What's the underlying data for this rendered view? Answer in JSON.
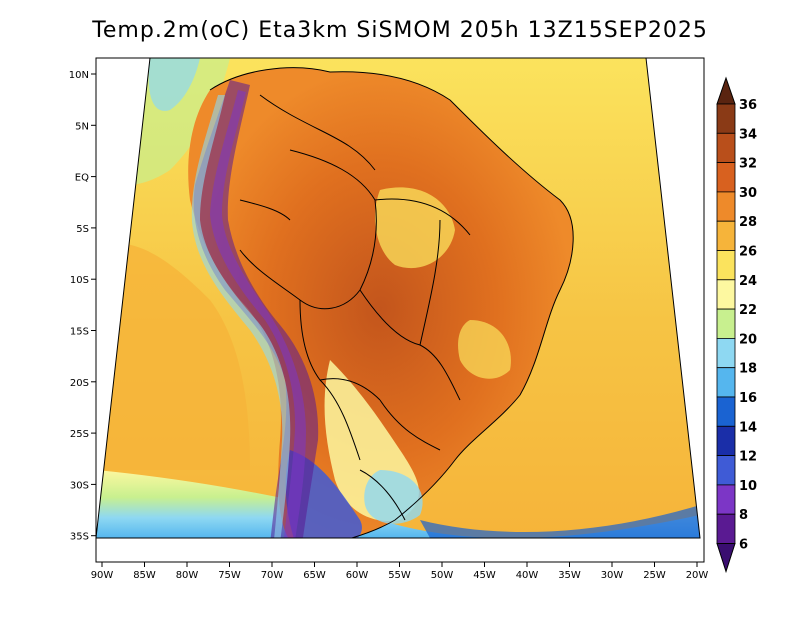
{
  "title": "Temp.2m(oC) Eta3km SiSMOM 205h 13Z15SEP2025",
  "lat_labels": [
    "10N",
    "5N",
    "EQ",
    "5S",
    "10S",
    "15S",
    "20S",
    "25S",
    "30S",
    "35S"
  ],
  "lon_labels": [
    "90W",
    "85W",
    "80W",
    "75W",
    "70W",
    "65W",
    "60W",
    "55W",
    "50W",
    "45W",
    "40W",
    "35W",
    "30W",
    "25W",
    "20W"
  ],
  "colorbar": {
    "labels": [
      "36",
      "34",
      "32",
      "30",
      "28",
      "26",
      "24",
      "22",
      "20",
      "18",
      "16",
      "14",
      "12",
      "10",
      "8",
      "6"
    ],
    "colors": [
      "#5a2410",
      "#8a3a16",
      "#b94f1b",
      "#d8611f",
      "#ee8a2a",
      "#f6b43a",
      "#fbe35d",
      "#fdf8a0",
      "#c8f08f",
      "#8ed8f2",
      "#55b6ee",
      "#1a63d2",
      "#1a2ea8",
      "#3f5bd6",
      "#7c36c6",
      "#5a1a92",
      "#3a0e70"
    ]
  }
}
